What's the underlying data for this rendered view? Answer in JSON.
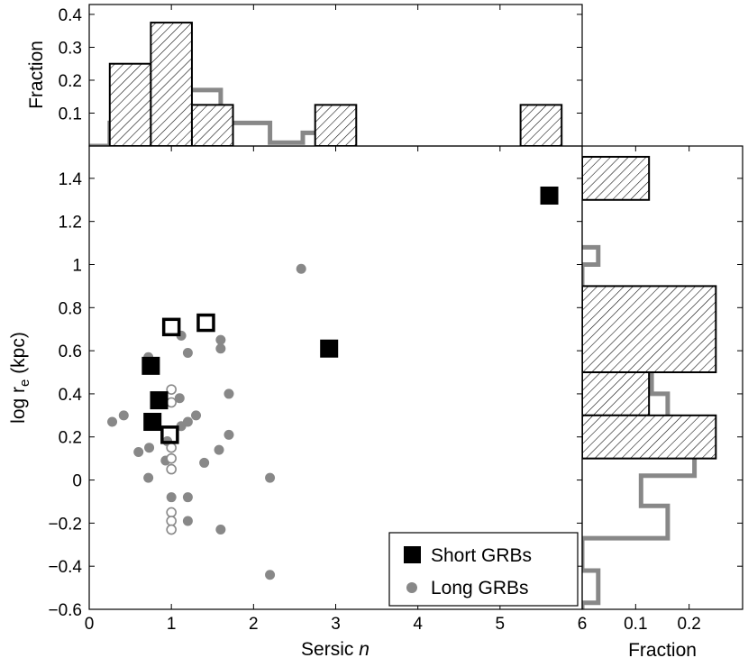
{
  "chart_data": {
    "type": "scatter",
    "main": {
      "xlabel": "Sersic",
      "xlabel_italic": "n",
      "ylabel_prefix": "log r",
      "ylabel_sub": "e",
      "ylabel_suffix": " (kpc)",
      "xlim": [
        0,
        6
      ],
      "ylim": [
        -0.6,
        1.55
      ],
      "xticks": [
        0,
        1,
        2,
        3,
        4,
        5,
        6
      ],
      "yticks": [
        -0.6,
        -0.4,
        -0.2,
        0,
        0.2,
        0.4,
        0.6,
        0.8,
        1,
        1.2,
        1.4
      ],
      "ytick_labels": [
        "−0.6",
        "−0.4",
        "−0.2",
        "0",
        "0.2",
        "0.4",
        "0.6",
        "0.8",
        "1",
        "1.2",
        "1.4"
      ],
      "series": [
        {
          "name": "Short GRBs (filled)",
          "marker": "square-filled",
          "color": "#000000",
          "points": [
            [
              0.75,
              0.53
            ],
            [
              0.85,
              0.37
            ],
            [
              0.77,
              0.27
            ],
            [
              2.92,
              0.61
            ],
            [
              5.6,
              1.32
            ]
          ]
        },
        {
          "name": "Short GRBs (open)",
          "marker": "square-open",
          "color": "#000000",
          "points": [
            [
              1.0,
              0.71
            ],
            [
              1.42,
              0.73
            ],
            [
              0.98,
              0.21
            ]
          ]
        },
        {
          "name": "Long GRBs (filled)",
          "marker": "circle-filled",
          "color": "#888888",
          "points": [
            [
              0.72,
              0.57
            ],
            [
              1.12,
              0.67
            ],
            [
              1.6,
              0.65
            ],
            [
              1.6,
              0.61
            ],
            [
              1.2,
              0.59
            ],
            [
              0.28,
              0.27
            ],
            [
              0.42,
              0.3
            ],
            [
              0.73,
              0.15
            ],
            [
              0.6,
              0.13
            ],
            [
              0.95,
              0.18
            ],
            [
              0.93,
              0.09
            ],
            [
              1.1,
              0.38
            ],
            [
              1.12,
              0.25
            ],
            [
              1.2,
              0.27
            ],
            [
              1.3,
              0.3
            ],
            [
              1.7,
              0.4
            ],
            [
              1.7,
              0.21
            ],
            [
              1.58,
              0.14
            ],
            [
              1.4,
              0.08
            ],
            [
              0.72,
              0.01
            ],
            [
              1.0,
              -0.08
            ],
            [
              1.2,
              -0.08
            ],
            [
              1.2,
              -0.19
            ],
            [
              1.6,
              -0.23
            ],
            [
              2.2,
              0.01
            ],
            [
              2.2,
              -0.44
            ],
            [
              2.58,
              0.98
            ]
          ]
        },
        {
          "name": "Long GRBs (open)",
          "marker": "circle-open",
          "color": "#888888",
          "points": [
            [
              1.0,
              0.42
            ],
            [
              1.0,
              0.36
            ],
            [
              1.0,
              0.15
            ],
            [
              1.0,
              0.1
            ],
            [
              1.0,
              0.05
            ],
            [
              1.0,
              -0.15
            ],
            [
              1.0,
              -0.19
            ],
            [
              1.0,
              -0.23
            ]
          ]
        }
      ],
      "legend": {
        "position": "bottom-right",
        "entries": [
          "Short GRBs",
          "Long GRBs"
        ]
      }
    },
    "top_hist": {
      "ylabel": "Fraction",
      "ylim": [
        0,
        0.43
      ],
      "yticks": [
        0.1,
        0.2,
        0.3,
        0.4
      ],
      "ytick_labels": [
        "0.1",
        "0.2",
        "0.3",
        "0.4"
      ],
      "short_bins": [
        [
          0.25,
          0.75,
          0.25
        ],
        [
          0.75,
          1.25,
          0.375
        ],
        [
          1.25,
          1.75,
          0.125
        ],
        [
          2.75,
          3.25,
          0.125
        ],
        [
          5.25,
          5.75,
          0.125
        ]
      ],
      "long_step": [
        [
          0.0,
          0.0
        ],
        [
          0.25,
          0.0
        ],
        [
          0.25,
          0.07
        ],
        [
          0.35,
          0.07
        ],
        [
          0.35,
          0.08
        ],
        [
          0.5,
          0.08
        ],
        [
          0.5,
          0.14
        ],
        [
          0.65,
          0.14
        ],
        [
          0.65,
          0.1
        ],
        [
          1.0,
          0.1
        ],
        [
          1.0,
          0.3
        ],
        [
          1.2,
          0.3
        ],
        [
          1.2,
          0.17
        ],
        [
          1.6,
          0.17
        ],
        [
          1.6,
          0.07
        ],
        [
          2.2,
          0.07
        ],
        [
          2.2,
          0.01
        ],
        [
          2.6,
          0.01
        ],
        [
          2.6,
          0.04
        ],
        [
          2.9,
          0.04
        ],
        [
          2.9,
          0.0
        ]
      ]
    },
    "right_hist": {
      "xlabel": "Fraction",
      "xlim": [
        0,
        0.3
      ],
      "xticks": [
        0.1,
        0.2
      ],
      "xtick_labels": [
        "0.1",
        "0.2"
      ],
      "short_bins": [
        [
          1.3,
          1.5,
          0.125
        ],
        [
          0.5,
          0.9,
          0.25
        ],
        [
          0.3,
          0.5,
          0.125
        ],
        [
          0.1,
          0.3,
          0.25
        ]
      ],
      "long_step": [
        [
          0.0,
          1.08
        ],
        [
          0.03,
          1.08
        ],
        [
          0.03,
          1.0
        ],
        [
          0.0,
          1.0
        ],
        [
          0.0,
          0.82
        ],
        [
          0.03,
          0.82
        ],
        [
          0.03,
          0.74
        ],
        [
          0.06,
          0.74
        ],
        [
          0.06,
          0.62
        ],
        [
          0.09,
          0.62
        ],
        [
          0.09,
          0.5
        ],
        [
          0.13,
          0.5
        ],
        [
          0.13,
          0.4
        ],
        [
          0.16,
          0.4
        ],
        [
          0.16,
          0.18
        ],
        [
          0.21,
          0.18
        ],
        [
          0.21,
          0.02
        ],
        [
          0.11,
          0.02
        ],
        [
          0.11,
          -0.12
        ],
        [
          0.16,
          -0.12
        ],
        [
          0.16,
          -0.27
        ],
        [
          0.0,
          -0.27
        ],
        [
          0.0,
          -0.42
        ],
        [
          0.03,
          -0.42
        ],
        [
          0.03,
          -0.57
        ],
        [
          0.0,
          -0.57
        ],
        [
          0.0,
          -0.6
        ]
      ]
    }
  }
}
